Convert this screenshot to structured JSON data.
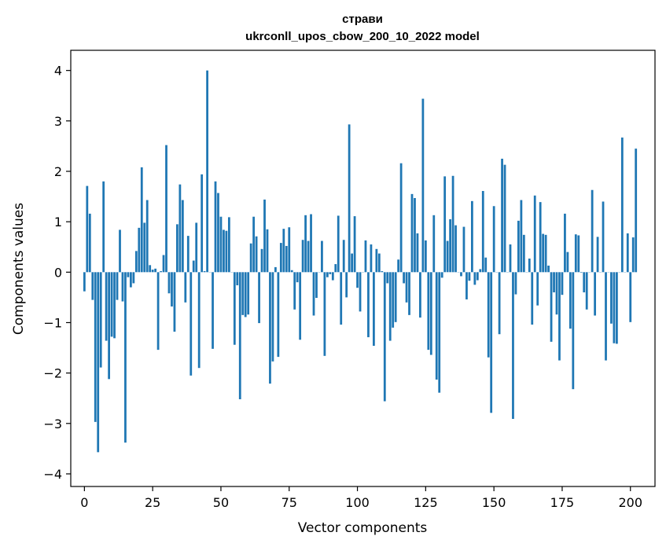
{
  "chart_data": {
    "type": "bar",
    "title": "страви",
    "subtitle": "ukrconll_upos_cbow_200_10_2022 model",
    "xlabel": "Vector components",
    "ylabel": "Components values",
    "xlim": [
      -5,
      209
    ],
    "ylim": [
      -4.25,
      4.4
    ],
    "xticks": [
      0,
      25,
      50,
      75,
      100,
      125,
      150,
      175,
      200
    ],
    "yticks": [
      -4,
      -3,
      -2,
      -1,
      0,
      1,
      2,
      3,
      4
    ],
    "grid": false,
    "legend": "none",
    "bar_color": "#1f77b4",
    "values": [
      -0.38,
      1.71,
      1.16,
      -0.55,
      -2.97,
      -3.57,
      -1.89,
      1.8,
      -1.36,
      -2.12,
      -1.28,
      -1.31,
      -0.55,
      0.84,
      -0.58,
      -3.38,
      -0.1,
      -0.3,
      -0.22,
      0.42,
      0.88,
      2.08,
      0.98,
      1.43,
      0.14,
      0.05,
      0.07,
      -1.54,
      0.02,
      0.34,
      2.52,
      -0.42,
      -0.68,
      -1.18,
      0.95,
      1.74,
      1.43,
      -0.6,
      0.72,
      -2.05,
      0.23,
      0.98,
      -1.9,
      1.94,
      0.02,
      4.0,
      0.0,
      -1.52,
      1.8,
      1.57,
      1.1,
      0.84,
      0.82,
      1.09,
      0.0,
      -1.44,
      -0.26,
      -2.52,
      -0.85,
      -0.89,
      -0.84,
      0.57,
      1.1,
      0.71,
      -1.01,
      0.46,
      1.44,
      0.85,
      -2.21,
      -1.77,
      0.1,
      -1.68,
      0.58,
      0.86,
      0.52,
      0.89,
      0.04,
      -0.74,
      -0.2,
      -1.34,
      0.64,
      1.13,
      0.62,
      1.15,
      -0.86,
      -0.51,
      0.0,
      0.62,
      -1.66,
      -0.1,
      -0.04,
      -0.16,
      0.16,
      1.12,
      -1.04,
      0.64,
      -0.5,
      2.93,
      0.37,
      1.11,
      -0.31,
      -0.78,
      0.0,
      0.63,
      -1.29,
      0.55,
      -1.46,
      0.46,
      0.37,
      0.02,
      -2.56,
      -0.22,
      -1.36,
      -1.1,
      -0.99,
      0.25,
      2.16,
      -0.22,
      -0.6,
      -0.85,
      1.55,
      1.47,
      0.77,
      -0.9,
      3.44,
      0.63,
      -1.54,
      -1.64,
      1.13,
      -2.13,
      -2.39,
      -0.11,
      1.9,
      0.62,
      1.05,
      1.91,
      0.93,
      0.0,
      -0.08,
      0.9,
      -0.54,
      -0.17,
      1.41,
      -0.25,
      -0.16,
      0.06,
      1.61,
      0.29,
      -1.69,
      -2.79,
      1.31,
      0.0,
      -1.23,
      2.25,
      2.13,
      0.0,
      0.55,
      -2.91,
      -0.44,
      1.02,
      1.43,
      0.74,
      0.0,
      0.27,
      -1.04,
      1.52,
      -0.66,
      1.39,
      0.76,
      0.74,
      0.13,
      -1.38,
      -0.4,
      -0.84,
      -1.75,
      -0.45,
      1.16,
      0.4,
      -1.12,
      -2.32,
      0.75,
      0.73,
      -0.01,
      -0.4,
      -0.74,
      0.0,
      1.63,
      -0.86,
      0.7,
      0.0,
      1.4,
      -1.75,
      0.0,
      -1.02,
      -1.41,
      -1.42,
      0.0,
      2.67,
      0.0,
      0.77,
      -0.99,
      0.69,
      2.45
    ]
  }
}
